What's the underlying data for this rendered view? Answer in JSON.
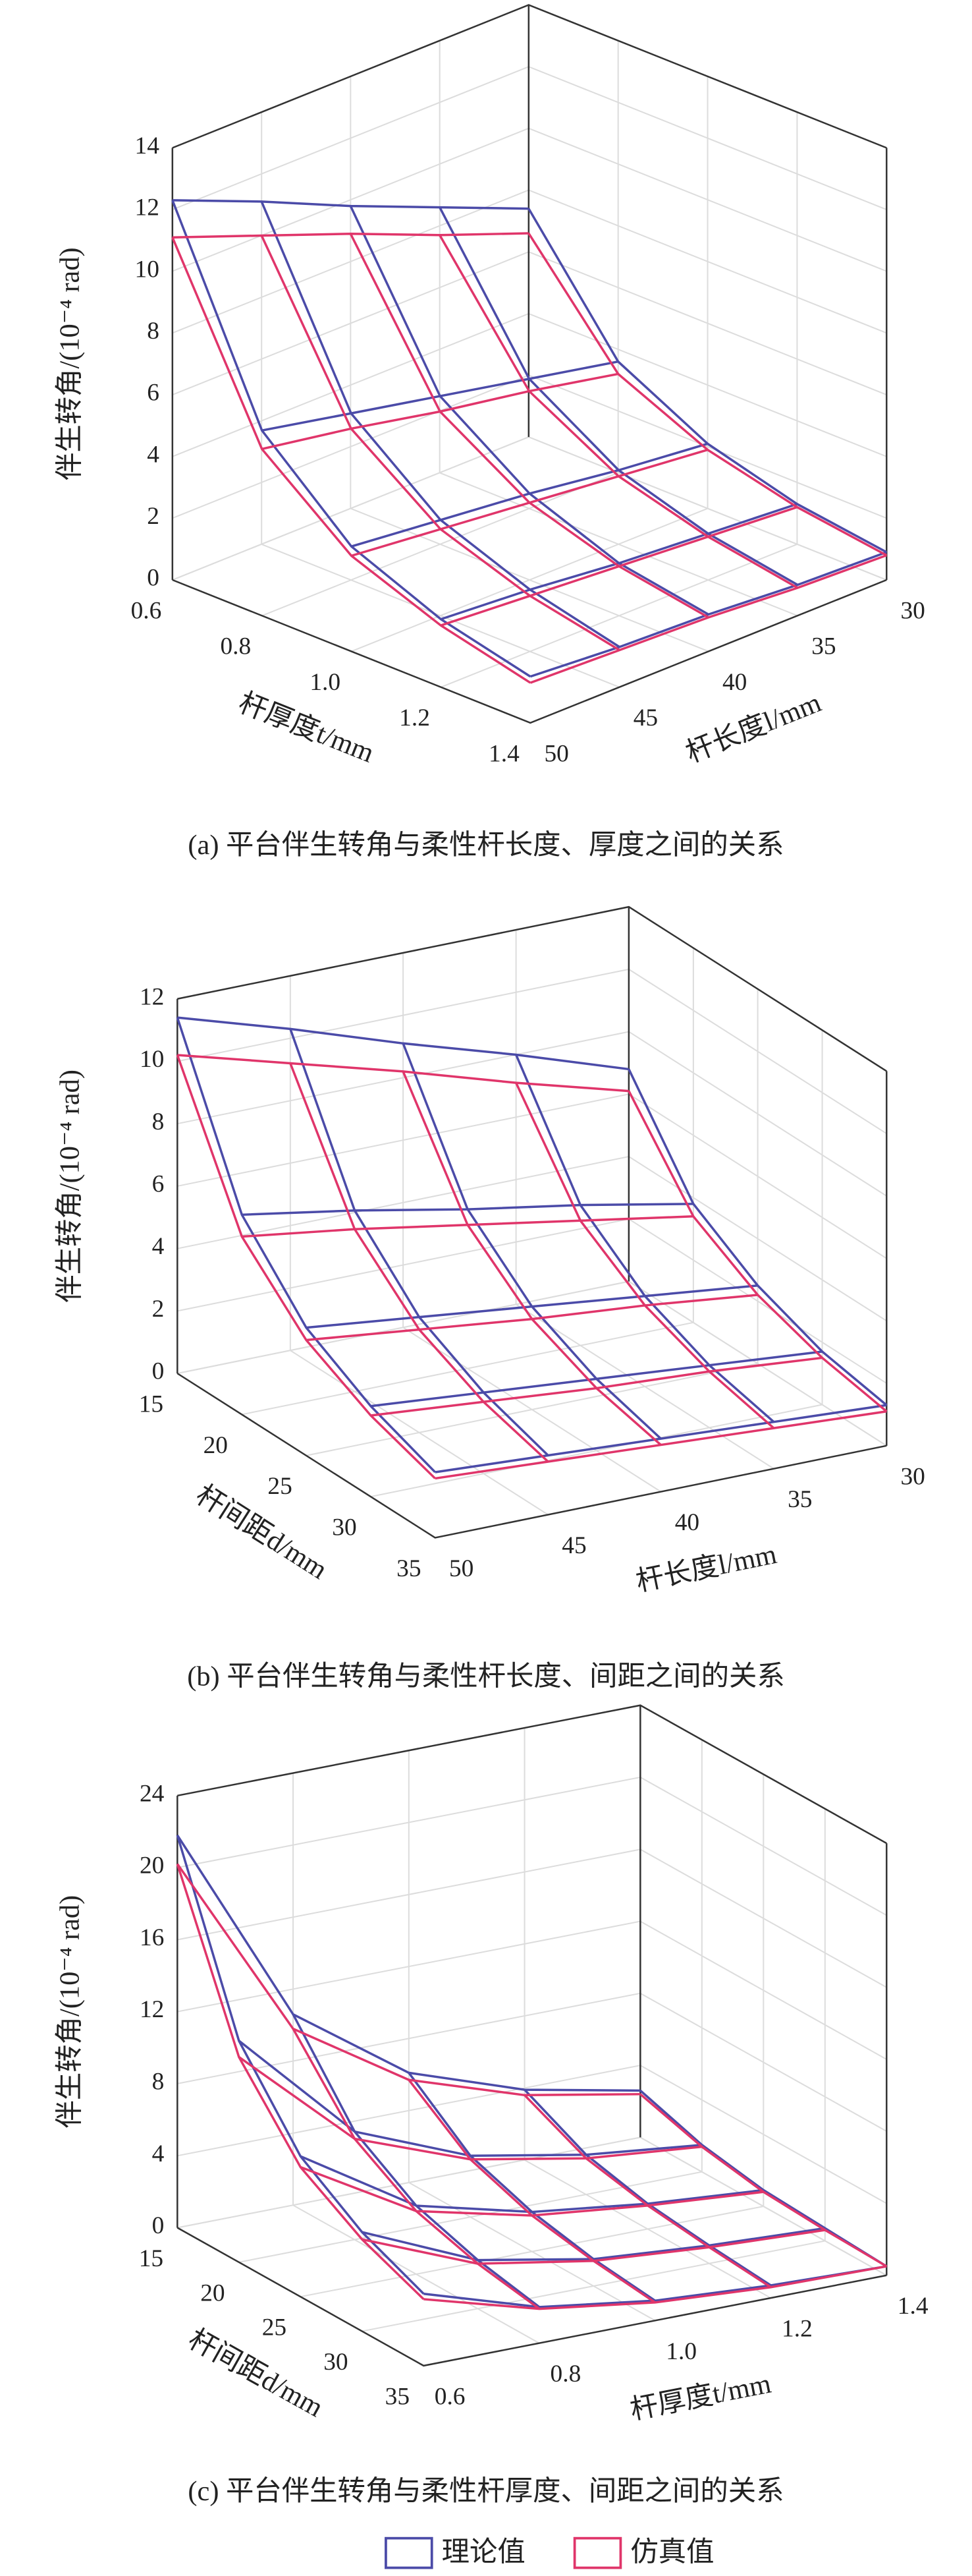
{
  "chart_data": [
    {
      "type": "surface",
      "caption": "(a) 平台伴生转角与柔性杆长度、厚度之间的关系",
      "xlabel": "杆厚度t/mm",
      "ylabel": "杆长度l/mm",
      "zlabel": "伴生转角/(10⁻⁴ rad)",
      "x": [
        0.6,
        0.8,
        1.0,
        1.2,
        1.4
      ],
      "y": [
        30,
        35,
        40,
        45,
        50
      ],
      "xlim": [
        0.6,
        1.4
      ],
      "ylim": [
        50,
        30
      ],
      "zlim": [
        0,
        14
      ],
      "xticks": [
        0.6,
        0.8,
        {
          "value": 1,
          "label": "1.0"
        },
        1.2,
        1.4
      ],
      "yticks": [
        50,
        45,
        40,
        35,
        30
      ],
      "zticks": [
        0,
        2,
        4,
        6,
        8,
        10,
        12,
        14
      ],
      "series": [
        {
          "color": "#4b4ba8",
          "values": [
            [
              7.4,
              8.6,
              9.8,
              11.1,
              12.3
            ],
            [
              3.6,
              4.2,
              4.8,
              5.4,
              6.0
            ],
            [
              2.1,
              2.4,
              2.8,
              3.1,
              3.4
            ],
            [
              1.3,
              1.5,
              1.7,
              2.0,
              2.2
            ],
            [
              0.9,
              1.0,
              1.2,
              1.3,
              1.5
            ]
          ]
        },
        {
          "color": "#e0356a",
          "values": [
            [
              6.6,
              7.7,
              8.9,
              10.0,
              11.1
            ],
            [
              3.2,
              3.8,
              4.3,
              4.9,
              5.4
            ],
            [
              1.9,
              2.2,
              2.5,
              2.8,
              3.1
            ],
            [
              1.2,
              1.4,
              1.6,
              1.8,
              2.0
            ],
            [
              0.8,
              0.9,
              1.1,
              1.2,
              1.3
            ]
          ]
        }
      ]
    },
    {
      "type": "surface",
      "caption": "(b) 平台伴生转角与柔性杆长度、间距之间的关系",
      "xlabel": "杆间距d/mm",
      "ylabel": "杆长度l/mm",
      "zlabel": "伴生转角/(10⁻⁴ rad)",
      "x": [
        15,
        20,
        25,
        30,
        35
      ],
      "y": [
        30,
        35,
        40,
        45,
        50
      ],
      "xlim": [
        15,
        35
      ],
      "ylim": [
        50,
        30
      ],
      "zlim": [
        0,
        12
      ],
      "xticks": [
        15,
        20,
        25,
        30,
        35
      ],
      "yticks": [
        50,
        45,
        40,
        35,
        30
      ],
      "zticks": [
        0,
        2,
        4,
        6,
        8,
        10,
        12
      ],
      "series": [
        {
          "color": "#4b4ba8",
          "values": [
            [
              6.8,
              8.0,
              9.1,
              10.3,
              11.4
            ],
            [
              3.8,
              4.5,
              5.1,
              5.8,
              6.4
            ],
            [
              2.5,
              2.9,
              3.3,
              3.7,
              4.1
            ],
            [
              1.7,
              2.0,
              2.3,
              2.6,
              2.9
            ],
            [
              1.3,
              1.5,
              1.7,
              1.9,
              2.1
            ]
          ]
        },
        {
          "color": "#e0356a",
          "values": [
            [
              6.1,
              7.1,
              8.2,
              9.2,
              10.2
            ],
            [
              3.4,
              4.0,
              4.6,
              5.2,
              5.7
            ],
            [
              2.2,
              2.6,
              2.9,
              3.3,
              3.7
            ],
            [
              1.5,
              1.8,
              2.0,
              2.3,
              2.6
            ],
            [
              1.1,
              1.3,
              1.5,
              1.7,
              1.9
            ]
          ]
        }
      ]
    },
    {
      "type": "surface",
      "caption": "(c) 平台伴生转角与柔性杆厚度、间距之间的关系",
      "xlabel": "杆间距d/mm",
      "ylabel": "杆厚度t/mm",
      "zlabel": "伴生转角/(10⁻⁴ rad)",
      "x": [
        15,
        20,
        25,
        30,
        35
      ],
      "y": [
        0.6,
        0.8,
        1.0,
        1.2,
        1.4
      ],
      "xlim": [
        15,
        35
      ],
      "ylim": [
        0.6,
        1.4
      ],
      "zlim": [
        0,
        24
      ],
      "xticks": [
        15,
        20,
        25,
        30,
        35
      ],
      "yticks": [
        0.6,
        0.8,
        {
          "value": 1,
          "label": "1.0"
        },
        1.2,
        1.4
      ],
      "zticks": [
        0,
        4,
        8,
        12,
        16,
        20,
        24
      ],
      "series": [
        {
          "name": "理论值",
          "color": "#4b4ba8",
          "values": [
            [
              21.8,
              10.6,
              6.1,
              3.9,
              2.6
            ],
            [
              12.3,
              6.0,
              3.4,
              2.2,
              1.5
            ],
            [
              7.8,
              3.8,
              2.2,
              1.4,
              0.9
            ],
            [
              5.5,
              2.7,
              1.5,
              1.0,
              0.7
            ],
            [
              4.0,
              2.0,
              1.1,
              0.7,
              0.5
            ]
          ]
        },
        {
          "name": "仿真值",
          "color": "#e0356a",
          "values": [
            [
              20.2,
              9.8,
              5.7,
              3.6,
              2.4
            ],
            [
              11.4,
              5.6,
              3.2,
              2.0,
              1.4
            ],
            [
              7.2,
              3.5,
              2.0,
              1.3,
              0.8
            ],
            [
              5.1,
              2.5,
              1.4,
              0.9,
              0.6
            ],
            [
              3.7,
              1.9,
              1.0,
              0.6,
              0.5
            ]
          ]
        }
      ]
    }
  ]
}
